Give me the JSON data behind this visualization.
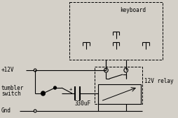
{
  "bg_color": "#d4d0c8",
  "line_color": "#000000",
  "figsize": [
    2.54,
    1.68
  ],
  "dpi": 100,
  "font_size": 5.5,
  "keyboard_label": "keyboard",
  "relay_label": "12V relay",
  "cap_label": "330uF",
  "v12_label": "+12V",
  "tumbler1": "tumbler",
  "tumbler2": "switch",
  "gnd_label": "Gnd"
}
